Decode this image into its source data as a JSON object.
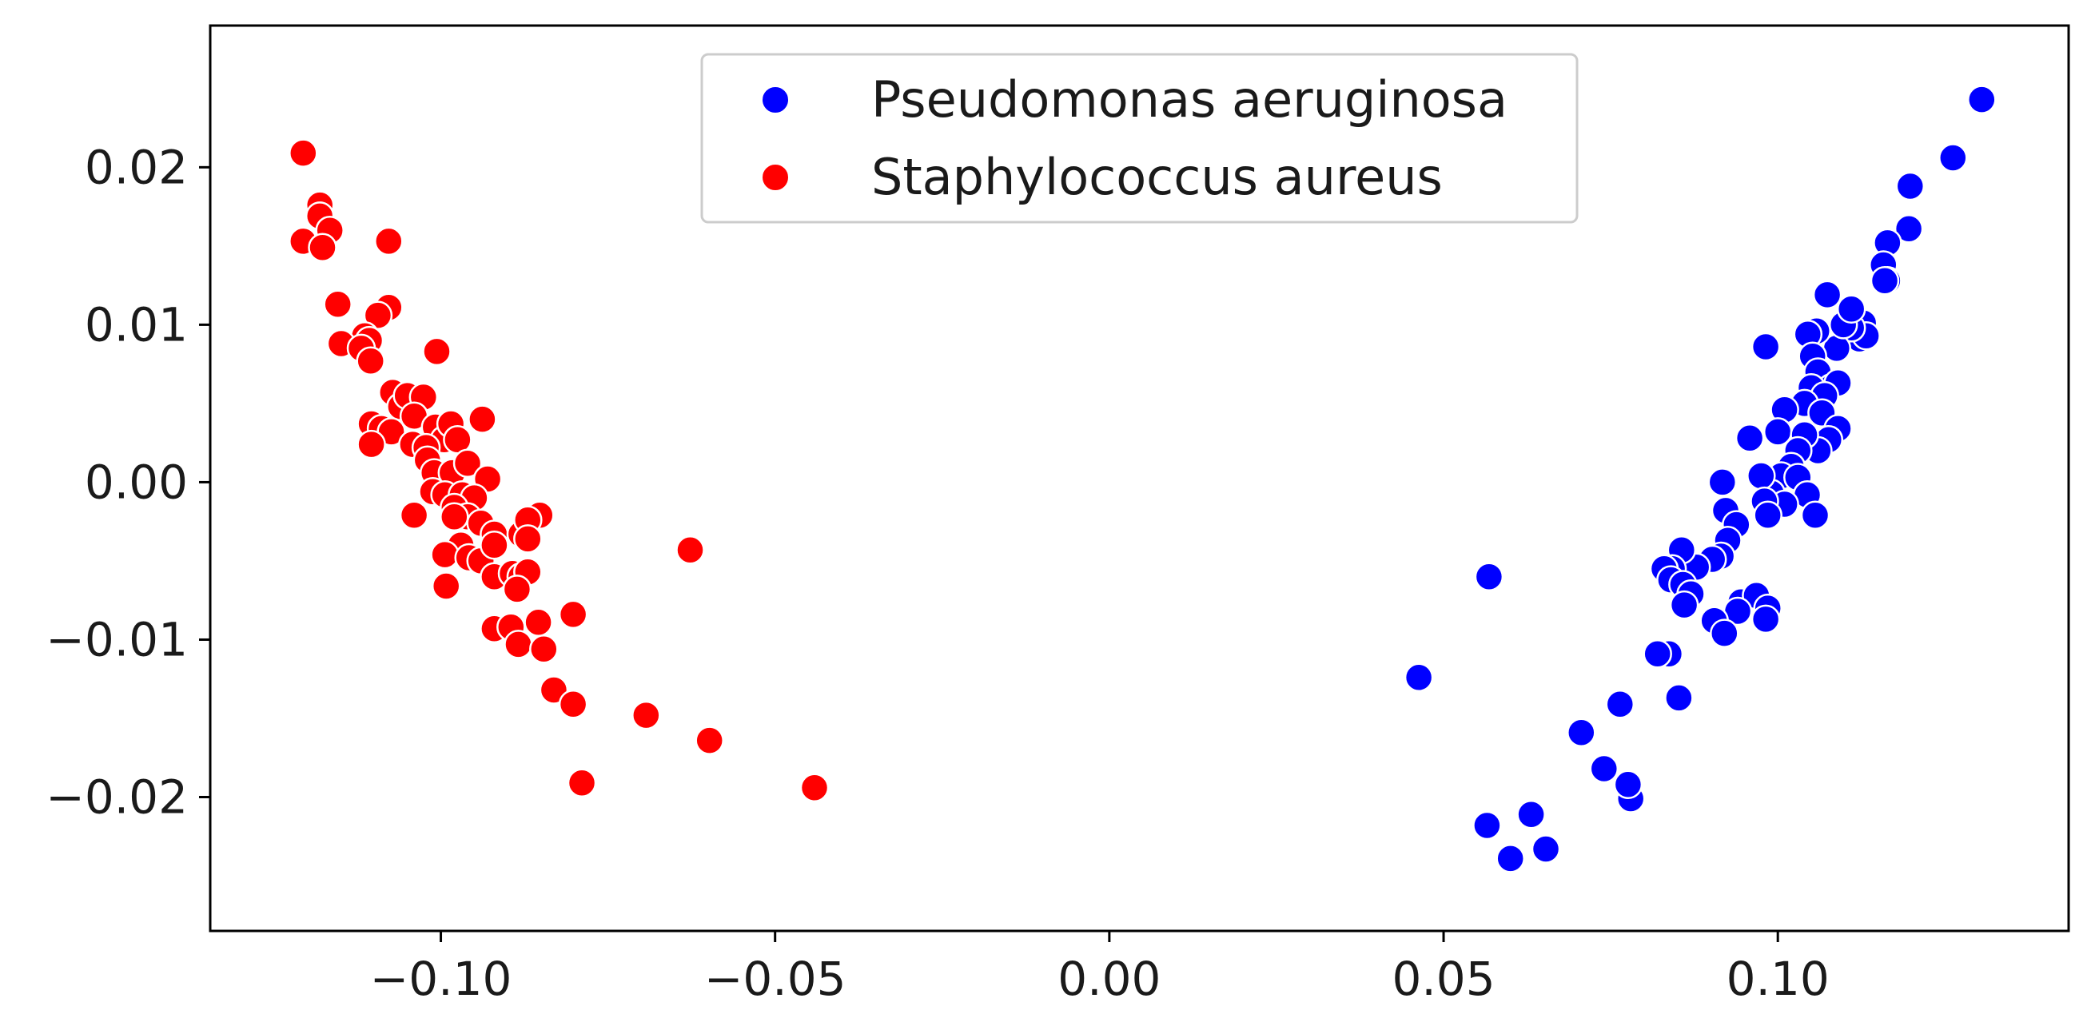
{
  "chart_data": {
    "type": "scatter",
    "title": "",
    "xlabel": "",
    "ylabel": "",
    "xlim": [
      -0.1345,
      0.1435
    ],
    "ylim": [
      -0.0285,
      0.029
    ],
    "grid": false,
    "legend_position": "top-center",
    "x_ticks": [
      -0.1,
      -0.05,
      0.0,
      0.05,
      0.1
    ],
    "x_tick_labels": [
      "−0.10",
      "−0.05",
      "0.00",
      "0.05",
      "0.10"
    ],
    "y_ticks": [
      -0.02,
      -0.01,
      0.0,
      0.01,
      0.02
    ],
    "y_tick_labels": [
      "−0.02",
      "−0.01",
      "0.00",
      "0.01",
      "0.02"
    ],
    "series": [
      {
        "name": "Pseudomonas aeruginosa",
        "color": "#0000ff",
        "points": [
          [
            0.1305,
            0.0243
          ],
          [
            0.1262,
            0.0206
          ],
          [
            0.1198,
            0.0188
          ],
          [
            0.1196,
            0.0161
          ],
          [
            0.1164,
            0.0152
          ],
          [
            0.1158,
            0.0138
          ],
          [
            0.1164,
            0.0128
          ],
          [
            0.116,
            0.0128
          ],
          [
            0.1128,
            0.0101
          ],
          [
            0.1122,
            0.0091
          ],
          [
            0.1132,
            0.0093
          ],
          [
            0.111,
            0.0098
          ],
          [
            0.1088,
            0.0085
          ],
          [
            0.1074,
            0.0119
          ],
          [
            0.1058,
            0.0096
          ],
          [
            0.1045,
            0.0094
          ],
          [
            0.1052,
            0.008
          ],
          [
            0.1098,
            0.01
          ],
          [
            0.111,
            0.011
          ],
          [
            0.106,
            0.007
          ],
          [
            0.108,
            0.006
          ],
          [
            0.109,
            0.0063
          ],
          [
            0.105,
            0.006
          ],
          [
            0.107,
            0.0055
          ],
          [
            0.104,
            0.005
          ],
          [
            0.1066,
            0.0044
          ],
          [
            0.101,
            0.0046
          ],
          [
            0.1,
            0.0032
          ],
          [
            0.109,
            0.0034
          ],
          [
            0.1076,
            0.0027
          ],
          [
            0.106,
            0.002
          ],
          [
            0.104,
            0.003
          ],
          [
            0.103,
            0.002
          ],
          [
            0.102,
            0.001
          ],
          [
            0.1005,
            0.0004
          ],
          [
            0.103,
            0.0003
          ],
          [
            0.1044,
            -0.0008
          ],
          [
            0.1056,
            -0.0021
          ],
          [
            0.099,
            -0.0007
          ],
          [
            0.101,
            -0.0014
          ],
          [
            0.0975,
            0.0004
          ],
          [
            0.098,
            -0.0012
          ],
          [
            0.0985,
            -0.0021
          ],
          [
            0.0958,
            0.0028
          ],
          [
            0.0982,
            0.0086
          ],
          [
            0.0917,
            0.0
          ],
          [
            0.0922,
            -0.0018
          ],
          [
            0.0938,
            -0.0027
          ],
          [
            0.0925,
            -0.0037
          ],
          [
            0.0915,
            -0.0047
          ],
          [
            0.0902,
            -0.0049
          ],
          [
            0.0878,
            -0.0054
          ],
          [
            0.0856,
            -0.0043
          ],
          [
            0.0842,
            -0.0055
          ],
          [
            0.083,
            -0.0055
          ],
          [
            0.084,
            -0.0062
          ],
          [
            0.0858,
            -0.0065
          ],
          [
            0.087,
            -0.0071
          ],
          [
            0.086,
            -0.0078
          ],
          [
            0.0945,
            -0.0076
          ],
          [
            0.0968,
            -0.0072
          ],
          [
            0.0985,
            -0.008
          ],
          [
            0.094,
            -0.0082
          ],
          [
            0.0905,
            -0.0088
          ],
          [
            0.092,
            -0.0096
          ],
          [
            0.0982,
            -0.0087
          ],
          [
            0.0837,
            -0.0109
          ],
          [
            0.082,
            -0.0109
          ],
          [
            0.0852,
            -0.0137
          ],
          [
            0.0764,
            -0.0141
          ],
          [
            0.0706,
            -0.0159
          ],
          [
            0.074,
            -0.0182
          ],
          [
            0.078,
            -0.0201
          ],
          [
            0.0776,
            -0.0192
          ],
          [
            0.0631,
            -0.0211
          ],
          [
            0.0565,
            -0.0218
          ],
          [
            0.06,
            -0.0239
          ],
          [
            0.0653,
            -0.0233
          ],
          [
            0.0568,
            -0.006
          ],
          [
            0.0463,
            -0.0124
          ]
        ]
      },
      {
        "name": "Staphylococcus aureus",
        "color": "#ff0000",
        "points": [
          [
            -0.1206,
            0.0209
          ],
          [
            -0.1181,
            0.0176
          ],
          [
            -0.1181,
            0.0169
          ],
          [
            -0.1166,
            0.016
          ],
          [
            -0.1206,
            0.0153
          ],
          [
            -0.1177,
            0.0149
          ],
          [
            -0.1078,
            0.0153
          ],
          [
            -0.1154,
            0.0113
          ],
          [
            -0.1078,
            0.0111
          ],
          [
            -0.1094,
            0.0106
          ],
          [
            -0.1114,
            0.0093
          ],
          [
            -0.1107,
            0.009
          ],
          [
            -0.1149,
            0.0088
          ],
          [
            -0.1119,
            0.0085
          ],
          [
            -0.1105,
            0.0077
          ],
          [
            -0.1006,
            0.0083
          ],
          [
            -0.1072,
            0.0057
          ],
          [
            -0.106,
            0.0048
          ],
          [
            -0.105,
            0.0055
          ],
          [
            -0.1026,
            0.0054
          ],
          [
            -0.104,
            0.0042
          ],
          [
            -0.1008,
            0.0035
          ],
          [
            -0.0995,
            0.0027
          ],
          [
            -0.0985,
            0.0037
          ],
          [
            -0.0975,
            0.0027
          ],
          [
            -0.0938,
            0.004
          ],
          [
            -0.1104,
            0.0037
          ],
          [
            -0.1089,
            0.0034
          ],
          [
            -0.1074,
            0.0032
          ],
          [
            -0.1042,
            0.0024
          ],
          [
            -0.1022,
            0.0022
          ],
          [
            -0.1104,
            0.0024
          ],
          [
            -0.102,
            0.0014
          ],
          [
            -0.101,
            0.0006
          ],
          [
            -0.0983,
            0.0006
          ],
          [
            -0.096,
            0.0012
          ],
          [
            -0.093,
            0.0002
          ],
          [
            -0.1012,
            -0.0006
          ],
          [
            -0.0994,
            -0.0008
          ],
          [
            -0.0968,
            -0.0008
          ],
          [
            -0.095,
            -0.001
          ],
          [
            -0.098,
            -0.0016
          ],
          [
            -0.096,
            -0.0022
          ],
          [
            -0.104,
            -0.0021
          ],
          [
            -0.098,
            -0.0022
          ],
          [
            -0.094,
            -0.0026
          ],
          [
            -0.092,
            -0.0033
          ],
          [
            -0.088,
            -0.0033
          ],
          [
            -0.0852,
            -0.0021
          ],
          [
            -0.087,
            -0.0024
          ],
          [
            -0.097,
            -0.004
          ],
          [
            -0.0994,
            -0.0046
          ],
          [
            -0.0958,
            -0.0048
          ],
          [
            -0.094,
            -0.005
          ],
          [
            -0.092,
            -0.004
          ],
          [
            -0.087,
            -0.0036
          ],
          [
            -0.0992,
            -0.0066
          ],
          [
            -0.092,
            -0.006
          ],
          [
            -0.0893,
            -0.0058
          ],
          [
            -0.088,
            -0.006
          ],
          [
            -0.087,
            -0.0057
          ],
          [
            -0.0886,
            -0.0068
          ],
          [
            -0.092,
            -0.0093
          ],
          [
            -0.0895,
            -0.0092
          ],
          [
            -0.0854,
            -0.0089
          ],
          [
            -0.0802,
            -0.0084
          ],
          [
            -0.0884,
            -0.0103
          ],
          [
            -0.0846,
            -0.0106
          ],
          [
            -0.0831,
            -0.0132
          ],
          [
            -0.0802,
            -0.0141
          ],
          [
            -0.0789,
            -0.0191
          ],
          [
            -0.0693,
            -0.0148
          ],
          [
            -0.0598,
            -0.0164
          ],
          [
            -0.0627,
            -0.0043
          ],
          [
            -0.0441,
            -0.0194
          ]
        ]
      }
    ]
  }
}
